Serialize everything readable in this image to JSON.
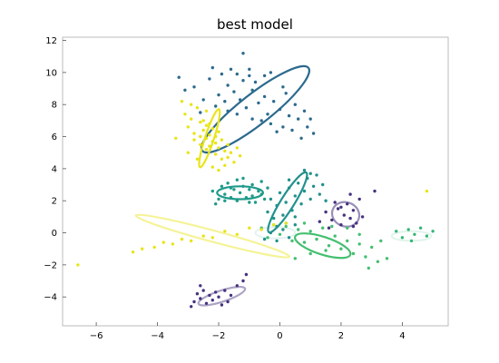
{
  "chart_data": {
    "type": "scatter",
    "title": "best model",
    "xlim": [
      -7.1,
      5.5
    ],
    "ylim": [
      -5.8,
      12.2
    ],
    "x_ticks": [
      -6,
      -4,
      -2,
      0,
      2,
      4
    ],
    "y_ticks": [
      -4,
      -2,
      0,
      2,
      4,
      6,
      8,
      10,
      12
    ],
    "x_tick_labels": [
      "−6",
      "−4",
      "−2",
      "0",
      "2",
      "4"
    ],
    "y_tick_labels": [
      "−4",
      "−2",
      "0",
      "2",
      "4",
      "6",
      "8",
      "10",
      "12"
    ],
    "grid": false,
    "clusters": [
      {
        "color": "#2c6a8e",
        "points": [
          [
            -3.3,
            9.7
          ],
          [
            -3.1,
            8.9
          ],
          [
            -2.8,
            9.1
          ],
          [
            -2.5,
            8.3
          ],
          [
            -2.3,
            9.6
          ],
          [
            -2.2,
            10.3
          ],
          [
            -2.1,
            7.9
          ],
          [
            -2.0,
            8.6
          ],
          [
            -1.9,
            9.9
          ],
          [
            -1.7,
            9.2
          ],
          [
            -1.7,
            7.6
          ],
          [
            -1.6,
            10.2
          ],
          [
            -1.5,
            8.8
          ],
          [
            -1.4,
            9.9
          ],
          [
            -1.4,
            7.4
          ],
          [
            -1.3,
            8.3
          ],
          [
            -1.2,
            11.2
          ],
          [
            -1.2,
            9.5
          ],
          [
            -1.1,
            7.8
          ],
          [
            -1.0,
            10.2
          ],
          [
            -0.9,
            8.9
          ],
          [
            -0.9,
            7.1
          ],
          [
            -0.8,
            9.4
          ],
          [
            -0.7,
            8.1
          ],
          [
            -0.6,
            7.0
          ],
          [
            -0.5,
            9.8
          ],
          [
            -0.5,
            8.5
          ],
          [
            -0.4,
            7.4
          ],
          [
            -0.3,
            10.0
          ],
          [
            -0.3,
            6.8
          ],
          [
            -0.2,
            8.2
          ],
          [
            -0.1,
            6.3
          ],
          [
            0.0,
            7.7
          ],
          [
            0.1,
            6.6
          ],
          [
            0.2,
            8.7
          ],
          [
            0.3,
            7.3
          ],
          [
            0.4,
            6.4
          ],
          [
            0.5,
            8.0
          ],
          [
            0.6,
            7.1
          ],
          [
            0.7,
            5.9
          ],
          [
            0.8,
            7.6
          ],
          [
            0.9,
            6.6
          ],
          [
            1.0,
            7.1
          ],
          [
            1.1,
            6.2
          ],
          [
            -2.6,
            7.5
          ],
          [
            -1.8,
            8.2
          ],
          [
            -1.0,
            9.8
          ],
          [
            0.1,
            9.1
          ]
        ],
        "ellipse": {
          "cx": -0.8,
          "cy": 7.7,
          "rx": 2.2,
          "ry": 0.95,
          "angle": -38,
          "width": 2.2,
          "opacity": 1.0
        }
      },
      {
        "color": "#e8e419",
        "points": [
          [
            -3.2,
            8.2
          ],
          [
            -3.1,
            7.4
          ],
          [
            -3.0,
            6.6
          ],
          [
            -2.9,
            7.1
          ],
          [
            -2.8,
            6.2
          ],
          [
            -2.8,
            5.8
          ],
          [
            -2.7,
            7.8
          ],
          [
            -2.6,
            6.9
          ],
          [
            -2.6,
            5.5
          ],
          [
            -2.5,
            6.4
          ],
          [
            -2.5,
            7.0
          ],
          [
            -2.4,
            5.9
          ],
          [
            -2.4,
            6.7
          ],
          [
            -2.3,
            6.1
          ],
          [
            -2.3,
            5.4
          ],
          [
            -2.2,
            6.5
          ],
          [
            -2.2,
            5.7
          ],
          [
            -2.1,
            6.0
          ],
          [
            -2.1,
            4.9
          ],
          [
            -2.0,
            5.3
          ],
          [
            -2.0,
            6.3
          ],
          [
            -1.9,
            4.6
          ],
          [
            -1.9,
            5.8
          ],
          [
            -1.8,
            5.1
          ],
          [
            -1.8,
            4.2
          ],
          [
            -1.7,
            5.5
          ],
          [
            -1.7,
            4.7
          ],
          [
            -1.6,
            5.0
          ],
          [
            -1.5,
            4.4
          ],
          [
            -1.4,
            5.3
          ],
          [
            -1.3,
            4.8
          ],
          [
            -2.7,
            4.6
          ],
          [
            -3.4,
            5.9
          ],
          [
            -2.9,
            8.0
          ],
          [
            -2.4,
            7.6
          ],
          [
            -2.0,
            3.9
          ],
          [
            -2.2,
            4.1
          ],
          [
            -3.0,
            5.0
          ],
          [
            -2.6,
            6.0
          ],
          [
            -2.3,
            6.8
          ],
          [
            -2.1,
            5.6
          ],
          [
            -2.4,
            5.2
          ]
        ],
        "ellipse": {
          "cx": -2.3,
          "cy": 5.9,
          "rx": 1.0,
          "ry": 0.28,
          "angle": -72,
          "width": 2.2,
          "opacity": 1.0
        }
      },
      {
        "color": "#1f9a8a",
        "points": [
          [
            -2.2,
            2.6
          ],
          [
            -2.0,
            2.1
          ],
          [
            -1.9,
            2.9
          ],
          [
            -1.8,
            2.4
          ],
          [
            -1.7,
            3.1
          ],
          [
            -1.6,
            2.2
          ],
          [
            -1.5,
            2.7
          ],
          [
            -1.4,
            2.0
          ],
          [
            -1.4,
            3.3
          ],
          [
            -1.3,
            2.5
          ],
          [
            -1.2,
            2.9
          ],
          [
            -1.1,
            2.2
          ],
          [
            -1.0,
            2.7
          ],
          [
            -0.9,
            3.0
          ],
          [
            -0.9,
            2.3
          ],
          [
            -0.8,
            1.9
          ],
          [
            -0.7,
            2.6
          ],
          [
            -0.6,
            3.2
          ],
          [
            -0.5,
            2.1
          ],
          [
            -0.4,
            2.8
          ],
          [
            -1.6,
            2.8
          ],
          [
            -2.1,
            1.8
          ],
          [
            -1.2,
            3.4
          ],
          [
            -0.6,
            2.4
          ],
          [
            -1.8,
            2.0
          ],
          [
            -1.0,
            1.9
          ]
        ],
        "ellipse": {
          "cx": -1.3,
          "cy": 2.5,
          "rx": 0.75,
          "ry": 0.4,
          "angle": 0,
          "width": 2.2,
          "opacity": 1.0
        }
      },
      {
        "color": "#21918c",
        "points": [
          [
            -0.4,
            1.3
          ],
          [
            -0.3,
            2.1
          ],
          [
            -0.2,
            0.9
          ],
          [
            -0.1,
            1.7
          ],
          [
            0.0,
            2.5
          ],
          [
            0.1,
            1.1
          ],
          [
            0.2,
            1.9
          ],
          [
            0.3,
            2.8
          ],
          [
            0.4,
            1.4
          ],
          [
            0.5,
            2.3
          ],
          [
            0.6,
            3.1
          ],
          [
            0.7,
            1.8
          ],
          [
            0.8,
            2.6
          ],
          [
            0.9,
            3.4
          ],
          [
            1.0,
            2.1
          ],
          [
            1.1,
            2.9
          ],
          [
            1.2,
            3.6
          ],
          [
            1.3,
            2.4
          ],
          [
            1.4,
            3.0
          ],
          [
            0.2,
            0.6
          ],
          [
            -0.1,
            0.4
          ],
          [
            0.8,
            3.9
          ],
          [
            1.0,
            3.7
          ],
          [
            0.5,
            1.0
          ],
          [
            0.3,
            3.3
          ],
          [
            1.5,
            2.0
          ]
        ],
        "ellipse": {
          "cx": 0.25,
          "cy": 1.9,
          "rx": 1.15,
          "ry": 0.42,
          "angle": -58,
          "width": 2.2,
          "opacity": 1.0
        }
      },
      {
        "color": "#44bf70",
        "points": [
          [
            -0.6,
            0.3
          ],
          [
            -0.4,
            -0.3
          ],
          [
            -0.2,
            0.5
          ],
          [
            0.0,
            -0.1
          ],
          [
            0.2,
            0.4
          ],
          [
            0.4,
            -0.5
          ],
          [
            0.6,
            0.2
          ],
          [
            0.8,
            -0.6
          ],
          [
            1.0,
            0.1
          ],
          [
            1.2,
            -0.4
          ],
          [
            1.4,
            0.3
          ],
          [
            1.6,
            -0.8
          ],
          [
            1.8,
            -0.2
          ],
          [
            2.0,
            -1.0
          ],
          [
            2.2,
            -0.5
          ],
          [
            2.4,
            -1.3
          ],
          [
            2.6,
            -0.7
          ],
          [
            2.8,
            -1.5
          ],
          [
            3.0,
            -0.9
          ],
          [
            2.6,
            -0.1
          ],
          [
            2.2,
            0.3
          ],
          [
            1.5,
            -1.1
          ],
          [
            1.0,
            -1.3
          ],
          [
            0.5,
            -1.6
          ],
          [
            3.2,
            -1.8
          ],
          [
            2.9,
            -2.2
          ],
          [
            3.5,
            -1.6
          ],
          [
            3.3,
            -0.5
          ],
          [
            0.8,
            0.6
          ],
          [
            1.7,
            0.4
          ]
        ],
        "ellipse": {
          "cx": 1.4,
          "cy": -0.8,
          "rx": 0.95,
          "ry": 0.55,
          "angle": 18,
          "width": 2.2,
          "opacity": 1.0
        }
      },
      {
        "color": "#46327e",
        "points": [
          [
            1.3,
            0.7
          ],
          [
            1.5,
            1.3
          ],
          [
            1.7,
            0.8
          ],
          [
            1.9,
            1.5
          ],
          [
            2.0,
            0.5
          ],
          [
            2.1,
            1.1
          ],
          [
            2.2,
            1.8
          ],
          [
            2.3,
            0.9
          ],
          [
            2.4,
            1.4
          ],
          [
            2.5,
            0.6
          ],
          [
            2.6,
            2.1
          ],
          [
            2.3,
            2.4
          ],
          [
            1.8,
            1.9
          ],
          [
            2.7,
            1.0
          ],
          [
            3.1,
            2.6
          ],
          [
            1.6,
            0.3
          ],
          [
            2.0,
            1.6
          ],
          [
            2.4,
            0.4
          ]
        ],
        "ellipse": {
          "cx": 2.15,
          "cy": 1.15,
          "rx": 0.45,
          "ry": 0.75,
          "angle": 20,
          "width": 2.2,
          "opacity": 0.55
        }
      },
      {
        "color": "#46327e",
        "points": [
          [
            -2.8,
            -4.3
          ],
          [
            -2.7,
            -3.8
          ],
          [
            -2.6,
            -4.1
          ],
          [
            -2.5,
            -3.6
          ],
          [
            -2.4,
            -4.4
          ],
          [
            -2.3,
            -3.9
          ],
          [
            -2.2,
            -4.2
          ],
          [
            -2.1,
            -3.7
          ],
          [
            -2.0,
            -4.0
          ],
          [
            -1.9,
            -4.5
          ],
          [
            -1.8,
            -3.6
          ],
          [
            -1.6,
            -3.9
          ],
          [
            -1.4,
            -3.3
          ],
          [
            -1.2,
            -3.0
          ],
          [
            -2.9,
            -4.6
          ],
          [
            -2.6,
            -3.3
          ],
          [
            -1.7,
            -4.3
          ],
          [
            -1.1,
            -2.6
          ]
        ],
        "ellipse": {
          "cx": -1.9,
          "cy": -3.95,
          "rx": 0.8,
          "ry": 0.35,
          "angle": -18,
          "width": 2.2,
          "opacity": 0.45
        }
      },
      {
        "color": "#e8e419",
        "points": [
          [
            -6.6,
            -2.0
          ],
          [
            -4.8,
            -1.2
          ],
          [
            -4.5,
            -1.0
          ],
          [
            -4.1,
            -0.9
          ],
          [
            -3.8,
            -0.6
          ],
          [
            -3.5,
            -0.7
          ],
          [
            -3.2,
            -0.4
          ],
          [
            -2.9,
            -0.5
          ],
          [
            -2.5,
            -0.2
          ],
          [
            -2.2,
            -0.3
          ],
          [
            -1.8,
            0.1
          ],
          [
            -1.4,
            -0.1
          ],
          [
            -1.0,
            0.3
          ],
          [
            -0.6,
            0.2
          ],
          [
            -0.2,
            0.5
          ],
          [
            0.2,
            0.6
          ],
          [
            4.8,
            2.6
          ]
        ],
        "ellipse": {
          "cx": -2.2,
          "cy": -0.2,
          "rx": 2.6,
          "ry": 0.35,
          "angle": 15,
          "width": 2.2,
          "opacity": 0.45
        }
      },
      {
        "color": "#21918c",
        "points": [
          [
            -0.5,
            -0.4
          ],
          [
            -0.3,
            0.0
          ],
          [
            -0.1,
            -0.5
          ],
          [
            0.1,
            0.2
          ],
          [
            0.3,
            -0.3
          ],
          [
            0.5,
            0.5
          ]
        ],
        "ellipse": {
          "cx": -0.15,
          "cy": 0.0,
          "rx": 0.65,
          "ry": 0.35,
          "angle": 0,
          "width": 2.0,
          "opacity": 0.12
        }
      },
      {
        "color": "#35b779",
        "points": [
          [
            3.8,
            0.1
          ],
          [
            4.0,
            -0.3
          ],
          [
            4.2,
            0.2
          ],
          [
            4.4,
            -0.1
          ],
          [
            4.6,
            0.3
          ],
          [
            4.8,
            -0.2
          ],
          [
            5.0,
            0.1
          ],
          [
            4.3,
            -0.5
          ]
        ],
        "ellipse": {
          "cx": 4.3,
          "cy": -0.2,
          "rx": 0.65,
          "ry": 0.3,
          "angle": 0,
          "width": 2.0,
          "opacity": 0.15
        }
      }
    ]
  }
}
